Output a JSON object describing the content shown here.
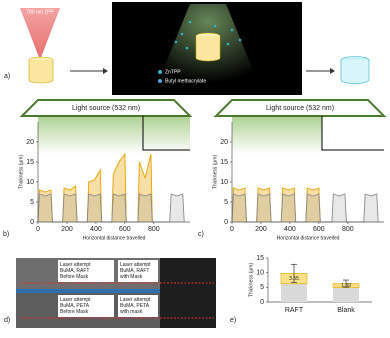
{
  "panel_labels": [
    "a)",
    "b)",
    "c)",
    "d)",
    "e)"
  ],
  "scheme": {
    "laser_label": "780 nm 2PP",
    "legend": [
      "ZnTPP",
      "Butyl methacrylate"
    ]
  },
  "photos": {
    "labels": [
      [
        "Laser attempt",
        "BuMA, RAFT",
        "Before Mask"
      ],
      [
        "Laser attempt",
        "BuMA, RAFT",
        "with Mask"
      ],
      [
        "Laser attempt",
        "BuMA, PETA",
        "Before Mask"
      ],
      [
        "Laser attempt",
        "BuMA, PETA",
        "with mask"
      ]
    ]
  },
  "chart_data": [
    {
      "type": "line",
      "annotation": "Light source (532 nm)",
      "xlabel": "Horizontal distance travelled",
      "ylabel": "Thickness (µm)",
      "x": [
        0,
        10,
        50,
        90,
        100,
        170,
        180,
        220,
        260,
        270,
        340,
        350,
        390,
        430,
        440,
        510,
        520,
        560,
        600,
        610,
        690,
        700,
        740,
        780,
        790,
        910,
        920,
        960,
        1000,
        1010
      ],
      "series": [
        {
          "color": "#e8a200",
          "values": [
            0,
            8,
            7.5,
            8,
            0,
            0,
            8.5,
            8,
            9,
            0,
            0,
            10,
            10.5,
            13,
            0,
            0,
            12,
            15,
            17,
            0,
            0,
            15,
            11,
            17,
            0,
            null,
            null,
            null,
            null,
            null
          ]
        },
        {
          "color": "#8c8c8c",
          "values": [
            0,
            7,
            6.5,
            7,
            0,
            0,
            7,
            6.5,
            7,
            0,
            0,
            7,
            6.5,
            7,
            0,
            0,
            7,
            6.5,
            7,
            0,
            0,
            7,
            6.5,
            7,
            0,
            0,
            7,
            6.5,
            7,
            0
          ]
        }
      ],
      "xlim": [
        0,
        1050
      ],
      "xticks": [
        0,
        200,
        400,
        600,
        800
      ],
      "ylim": [
        0,
        25
      ],
      "yticks": [
        0,
        5,
        10,
        15,
        20
      ]
    },
    {
      "type": "line",
      "annotation": "Light source (532 nm)",
      "xlabel": "Horizontal distance travelled",
      "ylabel": "Thickness (µm)",
      "x": [
        0,
        10,
        50,
        90,
        100,
        170,
        180,
        220,
        260,
        270,
        340,
        350,
        390,
        430,
        440,
        510,
        520,
        560,
        600,
        610,
        690,
        700,
        740,
        780,
        790,
        910,
        920,
        960,
        1000,
        1010
      ],
      "series": [
        {
          "color": "#e8a200",
          "values": [
            0,
            8.5,
            8,
            8.5,
            0,
            0,
            8.5,
            8,
            8.5,
            0,
            0,
            8.5,
            8,
            8.5,
            0,
            0,
            8.5,
            8,
            8.5,
            0,
            null,
            null,
            null,
            null,
            null,
            null,
            null,
            null,
            null,
            null
          ]
        },
        {
          "color": "#8c8c8c",
          "values": [
            0,
            7,
            6.5,
            7,
            0,
            0,
            7,
            6.5,
            7,
            0,
            0,
            7,
            6.5,
            7,
            0,
            0,
            7,
            6.5,
            7,
            0,
            0,
            7,
            6.5,
            7,
            0,
            0,
            7,
            6.5,
            7,
            0
          ]
        }
      ],
      "xlim": [
        0,
        1050
      ],
      "xticks": [
        0,
        200,
        400,
        600,
        800
      ],
      "ylim": [
        0,
        25
      ],
      "yticks": [
        0,
        5,
        10,
        15,
        20
      ]
    },
    {
      "type": "bar",
      "ylabel": "Thickness (µm)",
      "categories": [
        "RAFT",
        "Blank"
      ],
      "series": [
        {
          "color": "#d9d9d9",
          "values": [
            6.2,
            4.9
          ]
        },
        {
          "color": "#fbe08a",
          "values": [
            3.55,
            1.39
          ],
          "errors": [
            3.1,
            1.2
          ],
          "data_labels": true
        }
      ],
      "ylim": [
        0,
        15
      ],
      "yticks": [
        0,
        5,
        10,
        15
      ]
    }
  ]
}
